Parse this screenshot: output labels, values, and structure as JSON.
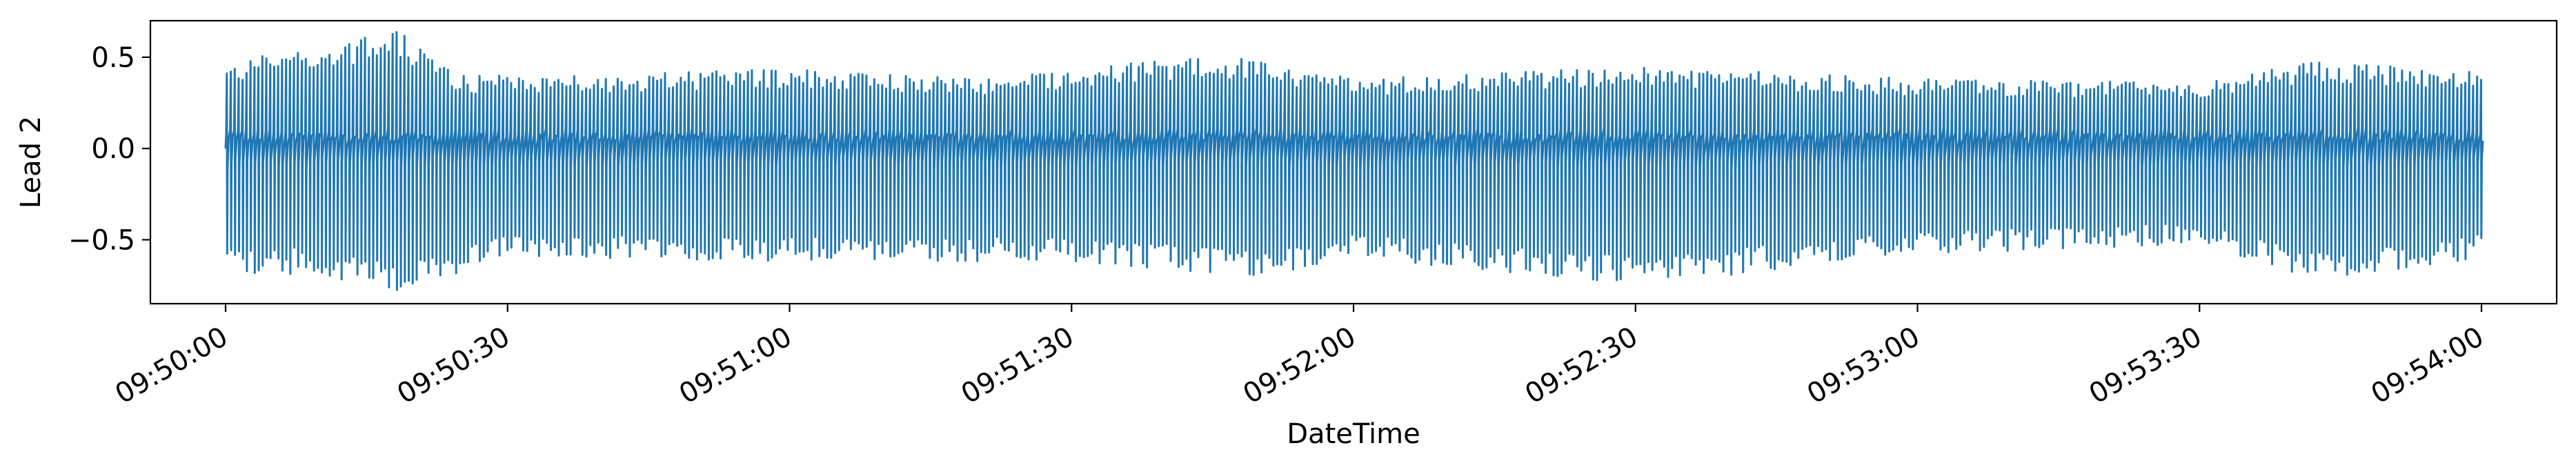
{
  "chart_data": {
    "type": "line",
    "title": "",
    "xlabel": "DateTime",
    "ylabel": "Lead 2",
    "x_range": [
      "09:50:00",
      "09:54:00"
    ],
    "xlim": [
      "09:49:52",
      "09:54:08"
    ],
    "ylim": [
      -0.85,
      0.7
    ],
    "x_ticks": [
      "09:50:00",
      "09:50:30",
      "09:51:00",
      "09:51:30",
      "09:52:00",
      "09:52:30",
      "09:53:00",
      "09:53:30",
      "09:54:00"
    ],
    "y_ticks": [
      0.5,
      0.0,
      -0.5
    ],
    "y_tick_labels": [
      "0.5",
      "0.0",
      "−0.5"
    ],
    "grid": false,
    "color": "#1f77b4",
    "series": [
      {
        "y_max_envelope": [
          {
            "x": "09:50:00",
            "y": 0.45
          },
          {
            "x": "09:50:05",
            "y": 0.55
          },
          {
            "x": "09:50:10",
            "y": 0.55
          },
          {
            "x": "09:50:18",
            "y": 0.65
          },
          {
            "x": "09:50:25",
            "y": 0.4
          },
          {
            "x": "09:50:40",
            "y": 0.4
          },
          {
            "x": "09:51:00",
            "y": 0.44
          },
          {
            "x": "09:51:20",
            "y": 0.38
          },
          {
            "x": "09:51:45",
            "y": 0.52
          },
          {
            "x": "09:52:00",
            "y": 0.38
          },
          {
            "x": "09:52:30",
            "y": 0.45
          },
          {
            "x": "09:53:00",
            "y": 0.38
          },
          {
            "x": "09:53:30",
            "y": 0.36
          },
          {
            "x": "09:53:42",
            "y": 0.48
          },
          {
            "x": "09:54:00",
            "y": 0.42
          }
        ],
        "y_min_envelope": [
          {
            "x": "09:50:00",
            "y": -0.68
          },
          {
            "x": "09:50:10",
            "y": -0.7
          },
          {
            "x": "09:50:18",
            "y": -0.78
          },
          {
            "x": "09:50:30",
            "y": -0.6
          },
          {
            "x": "09:51:00",
            "y": -0.62
          },
          {
            "x": "09:51:30",
            "y": -0.62
          },
          {
            "x": "09:51:50",
            "y": -0.72
          },
          {
            "x": "09:52:00",
            "y": -0.6
          },
          {
            "x": "09:52:30",
            "y": -0.75
          },
          {
            "x": "09:53:00",
            "y": -0.58
          },
          {
            "x": "09:53:30",
            "y": -0.52
          },
          {
            "x": "09:53:42",
            "y": -0.72
          },
          {
            "x": "09:54:00",
            "y": -0.6
          }
        ],
        "baseline": 0.0
      }
    ]
  }
}
